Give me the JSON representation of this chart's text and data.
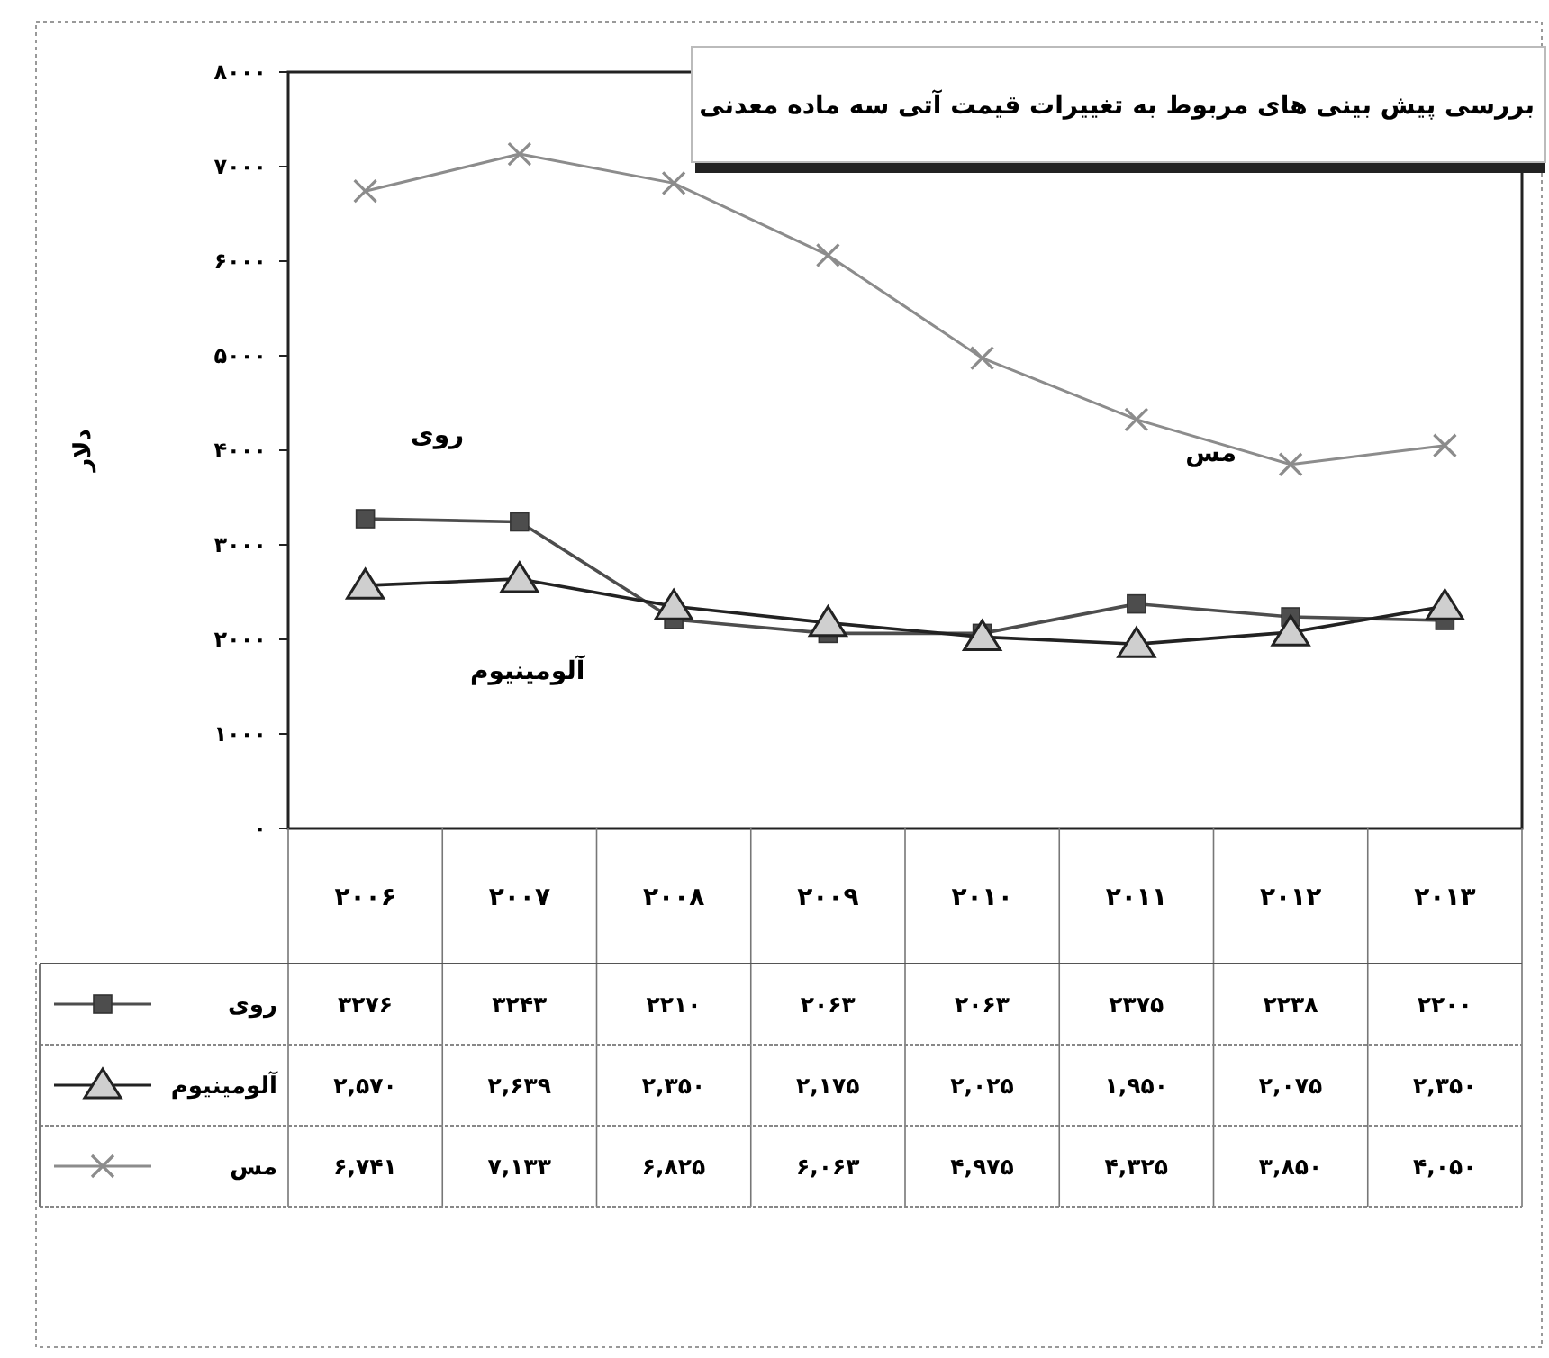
{
  "chart_data": {
    "type": "line",
    "title": "بررسی پیش بینی های مربوط به  تغییرات قیمت آتی سه ماده معدنی",
    "ylabel": "دلار",
    "categories": [
      "۲۰۰۶",
      "۲۰۰۷",
      "۲۰۰۸",
      "۲۰۰۹",
      "۲۰۱۰",
      "۲۰۱۱",
      "۲۰۱۲",
      "۲۰۱۳"
    ],
    "ylim": [
      0,
      8000
    ],
    "yticks": [
      {
        "value": 0,
        "label": "۰"
      },
      {
        "value": 1000,
        "label": "۱۰۰۰"
      },
      {
        "value": 2000,
        "label": "۲۰۰۰"
      },
      {
        "value": 3000,
        "label": "۳۰۰۰"
      },
      {
        "value": 4000,
        "label": "۴۰۰۰"
      },
      {
        "value": 5000,
        "label": "۵۰۰۰"
      },
      {
        "value": 6000,
        "label": "۶۰۰۰"
      },
      {
        "value": 7000,
        "label": "۷۰۰۰"
      },
      {
        "value": 8000,
        "label": "۸۰۰۰"
      }
    ],
    "series": [
      {
        "name": "روی",
        "color": "#4d4d4d",
        "marker": "square",
        "values": [
          3276,
          3243,
          2210,
          2063,
          2063,
          2375,
          2238,
          2200
        ],
        "value_labels": [
          "۳۲۷۶",
          "۳۲۴۳",
          "۲۲۱۰",
          "۲۰۶۳",
          "۲۰۶۳",
          "۲۳۷۵",
          "۲۲۳۸",
          "۲۲۰۰"
        ]
      },
      {
        "name": "آلومینیوم",
        "color": "#222222",
        "marker": "triangle",
        "values": [
          2570,
          2639,
          2350,
          2175,
          2025,
          1950,
          2075,
          2350
        ],
        "value_labels": [
          "۲,۵۷۰",
          "۲,۶۳۹",
          "۲,۳۵۰",
          "۲,۱۷۵",
          "۲,۰۲۵",
          "۱,۹۵۰",
          "۲,۰۷۵",
          "۲,۳۵۰"
        ]
      },
      {
        "name": "مس",
        "color": "#8c8c8c",
        "marker": "cross",
        "values": [
          6741,
          7133,
          6825,
          6063,
          4975,
          4325,
          3850,
          4050
        ],
        "value_labels": [
          "۶,۷۴۱",
          "۷,۱۳۳",
          "۶,۸۲۵",
          "۶,۰۶۳",
          "۴,۹۷۵",
          "۴,۳۲۵",
          "۳,۸۵۰",
          "۴,۰۵۰"
        ]
      }
    ],
    "legend": "bottom left",
    "grid": false,
    "line_style": "solid"
  }
}
